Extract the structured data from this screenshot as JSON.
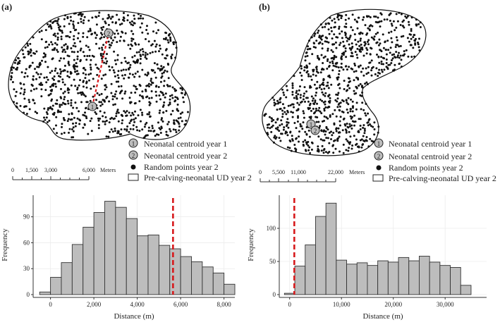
{
  "panels": {
    "a": {
      "label": "(a)",
      "legend": {
        "centroid1_num": "1",
        "centroid1_label": "Neonatal centroid year 1",
        "centroid2_num": "2",
        "centroid2_label": "Neonatal centroid year 2",
        "random_label": "Random points year 2",
        "ud_label": "Pre-calving-neonatal UD year 2"
      },
      "scalebar": {
        "ticks": [
          "0",
          "1,500",
          "3,000",
          "6,000"
        ],
        "unit": "Meters"
      }
    },
    "b": {
      "label": "(b)",
      "legend": {
        "centroid1_num": "1",
        "centroid1_label": "Neonatal centroid year 1",
        "centroid2_num": "2",
        "centroid2_label": "Neonatal centroid year 2",
        "random_label": "Random points year 2",
        "ud_label": "Pre-calving-neonatal UD year 2"
      },
      "scalebar": {
        "ticks": [
          "0",
          "5,500",
          "11,000",
          "22,000"
        ],
        "unit": "Meters"
      }
    }
  },
  "colors": {
    "bar_fill": "#bdbdbd",
    "bar_edge": "#333333",
    "observed_line": "#d7191c",
    "centroid_fill": "#bdbdbd",
    "points": "#111111"
  },
  "chart_data": [
    {
      "type": "bar",
      "panel": "a",
      "title": "",
      "xlabel": "Distance (m)",
      "ylabel": "Frequency",
      "bin_start": -500,
      "bin_width": 500,
      "values": [
        3,
        20,
        37,
        58,
        78,
        95,
        108,
        101,
        88,
        68,
        69,
        57,
        53,
        44,
        38,
        32,
        25,
        12
      ],
      "xlim": [
        -800,
        8500
      ],
      "ylim": [
        0,
        115
      ],
      "xticks": [
        0,
        2000,
        4000,
        6000,
        8000
      ],
      "xtick_labels": [
        "0",
        "2,000",
        "4,000",
        "6,000",
        "8,000"
      ],
      "yticks": [
        0,
        30,
        60,
        90
      ],
      "ytick_labels": [
        "0",
        "30",
        "60",
        "90"
      ],
      "observed_distance": 5650
    },
    {
      "type": "bar",
      "panel": "b",
      "title": "",
      "xlabel": "Distance (m)",
      "ylabel": "Frequency",
      "bin_start": -1000,
      "bin_width": 2000,
      "values": [
        2,
        43,
        75,
        118,
        138,
        52,
        46,
        48,
        44,
        51,
        49,
        56,
        51,
        58,
        49,
        44,
        41,
        14
      ],
      "xlim": [
        -2000,
        38000
      ],
      "ylim": [
        0,
        150
      ],
      "xticks": [
        0,
        10000,
        20000,
        30000
      ],
      "xtick_labels": [
        "0",
        "10,000",
        "20,000",
        "30,000"
      ],
      "yticks": [
        0,
        50,
        100
      ],
      "ytick_labels": [
        "0",
        "50",
        "100"
      ],
      "observed_distance": 900
    }
  ]
}
